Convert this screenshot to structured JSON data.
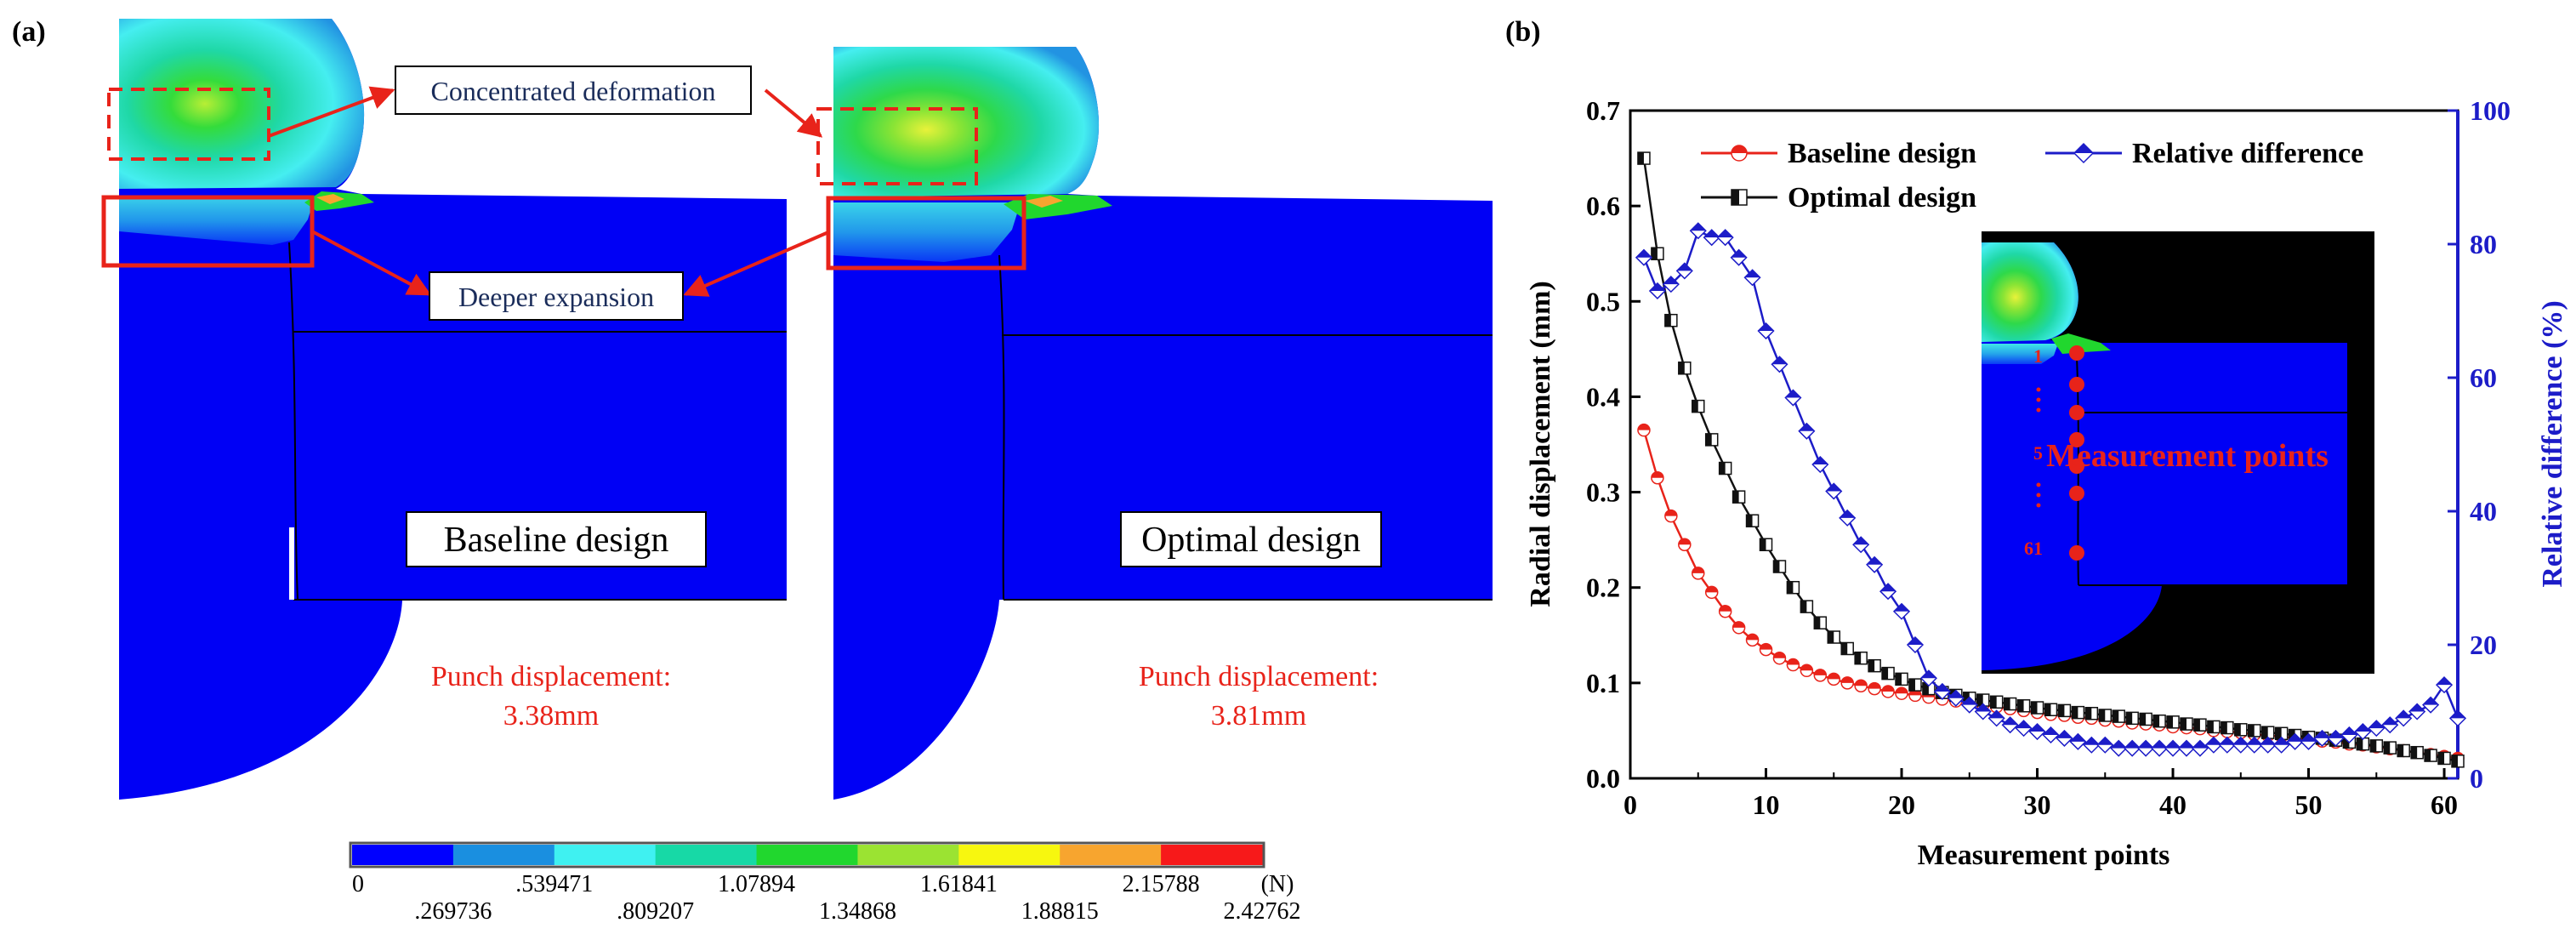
{
  "panel_a": {
    "label": "(a)",
    "callouts": {
      "concentrated": "Concentrated deformation",
      "deeper": "Deeper expansion"
    },
    "baseline": {
      "title": "Baseline design",
      "punch_label": "Punch displacement:",
      "punch_value": "3.38mm"
    },
    "optimal": {
      "title": "Optimal design",
      "punch_label": "Punch displacement:",
      "punch_value": "3.81mm"
    },
    "colorbar": {
      "colors": [
        "#0000ff",
        "#1a8fe0",
        "#3ff1f1",
        "#17d9a6",
        "#21d72e",
        "#9be332",
        "#f7f70f",
        "#f7a52f",
        "#f7191a"
      ],
      "top_labels": [
        "0",
        ".539471",
        "1.07894",
        "1.61841",
        "2.15788",
        "(N)"
      ],
      "bottom_labels": [
        ".269736",
        ".809207",
        "1.34868",
        "1.88815",
        "2.42762"
      ]
    }
  },
  "panel_b": {
    "label": "(b)",
    "inset": {
      "title": "Measurement points",
      "point_labels": [
        "1",
        "5",
        "61"
      ]
    }
  },
  "chart_data": {
    "type": "line",
    "title": "",
    "xlabel": "Measurement points",
    "ylabel": "Radial displacement (mm)",
    "y2label": "Relative difference (%)",
    "xlim": [
      0,
      61
    ],
    "ylim": [
      0,
      0.7
    ],
    "y2lim": [
      0,
      100
    ],
    "xticks": [
      "0",
      "10",
      "20",
      "30",
      "40",
      "50",
      "60"
    ],
    "yticks": [
      "0.0",
      "0.1",
      "0.2",
      "0.3",
      "0.4",
      "0.5",
      "0.6",
      "0.7"
    ],
    "y2ticks": [
      "0",
      "20",
      "40",
      "60",
      "80",
      "100"
    ],
    "legend_position": "top",
    "colors": {
      "baseline": "#e8231a",
      "optimal": "#111111",
      "relative": "#1c1cc8"
    },
    "series": [
      {
        "name": "Baseline design",
        "axis": "left",
        "marker": "circle",
        "x": [
          1,
          2,
          3,
          4,
          5,
          6,
          7,
          8,
          9,
          10,
          11,
          12,
          13,
          14,
          15,
          16,
          17,
          18,
          19,
          20,
          21,
          22,
          23,
          24,
          25,
          26,
          27,
          28,
          29,
          30,
          31,
          32,
          33,
          34,
          35,
          36,
          37,
          38,
          39,
          40,
          41,
          42,
          43,
          44,
          45,
          46,
          47,
          48,
          49,
          50,
          51,
          52,
          53,
          54,
          55,
          56,
          57,
          58,
          59,
          60,
          61
        ],
        "values": [
          0.365,
          0.315,
          0.275,
          0.245,
          0.215,
          0.195,
          0.175,
          0.158,
          0.145,
          0.135,
          0.126,
          0.119,
          0.113,
          0.108,
          0.104,
          0.1,
          0.097,
          0.094,
          0.091,
          0.089,
          0.087,
          0.085,
          0.083,
          0.081,
          0.079,
          0.077,
          0.075,
          0.073,
          0.071,
          0.069,
          0.067,
          0.066,
          0.064,
          0.063,
          0.061,
          0.06,
          0.058,
          0.057,
          0.056,
          0.054,
          0.053,
          0.052,
          0.05,
          0.049,
          0.048,
          0.046,
          0.045,
          0.044,
          0.042,
          0.041,
          0.039,
          0.038,
          0.036,
          0.035,
          0.033,
          0.031,
          0.029,
          0.027,
          0.025,
          0.023,
          0.021
        ]
      },
      {
        "name": "Optimal design",
        "axis": "left",
        "marker": "square",
        "x": [
          1,
          2,
          3,
          4,
          5,
          6,
          7,
          8,
          9,
          10,
          11,
          12,
          13,
          14,
          15,
          16,
          17,
          18,
          19,
          20,
          21,
          22,
          23,
          24,
          25,
          26,
          27,
          28,
          29,
          30,
          31,
          32,
          33,
          34,
          35,
          36,
          37,
          38,
          39,
          40,
          41,
          42,
          43,
          44,
          45,
          46,
          47,
          48,
          49,
          50,
          51,
          52,
          53,
          54,
          55,
          56,
          57,
          58,
          59,
          60,
          61
        ],
        "values": [
          0.65,
          0.55,
          0.48,
          0.43,
          0.39,
          0.355,
          0.325,
          0.295,
          0.27,
          0.245,
          0.222,
          0.2,
          0.18,
          0.163,
          0.148,
          0.136,
          0.126,
          0.118,
          0.11,
          0.104,
          0.098,
          0.094,
          0.09,
          0.087,
          0.084,
          0.082,
          0.08,
          0.078,
          0.076,
          0.074,
          0.072,
          0.071,
          0.069,
          0.068,
          0.066,
          0.065,
          0.063,
          0.062,
          0.06,
          0.059,
          0.057,
          0.056,
          0.054,
          0.053,
          0.051,
          0.05,
          0.048,
          0.047,
          0.045,
          0.043,
          0.042,
          0.04,
          0.038,
          0.036,
          0.034,
          0.032,
          0.029,
          0.027,
          0.024,
          0.021,
          0.018
        ]
      },
      {
        "name": "Relative difference",
        "axis": "right",
        "marker": "diamond",
        "x": [
          1,
          2,
          3,
          4,
          5,
          6,
          7,
          8,
          9,
          10,
          11,
          12,
          13,
          14,
          15,
          16,
          17,
          18,
          19,
          20,
          21,
          22,
          23,
          24,
          25,
          26,
          27,
          28,
          29,
          30,
          31,
          32,
          33,
          34,
          35,
          36,
          37,
          38,
          39,
          40,
          41,
          42,
          43,
          44,
          45,
          46,
          47,
          48,
          49,
          50,
          51,
          52,
          53,
          54,
          55,
          56,
          57,
          58,
          59,
          60,
          61
        ],
        "values": [
          78,
          73,
          74,
          76,
          82,
          81,
          81,
          78,
          75,
          67,
          62,
          57,
          52,
          47,
          43,
          39,
          35,
          32,
          28,
          25,
          20,
          15,
          13,
          12,
          11,
          10,
          9,
          8,
          7.5,
          7,
          6.5,
          6,
          5.5,
          5,
          5,
          4.5,
          4.5,
          4.5,
          4.5,
          4.5,
          4.5,
          4.5,
          5,
          5,
          5,
          5,
          5,
          5,
          5.5,
          5.5,
          6,
          6,
          6.5,
          7,
          7.5,
          8,
          9,
          10,
          11,
          14,
          9
        ]
      }
    ]
  }
}
